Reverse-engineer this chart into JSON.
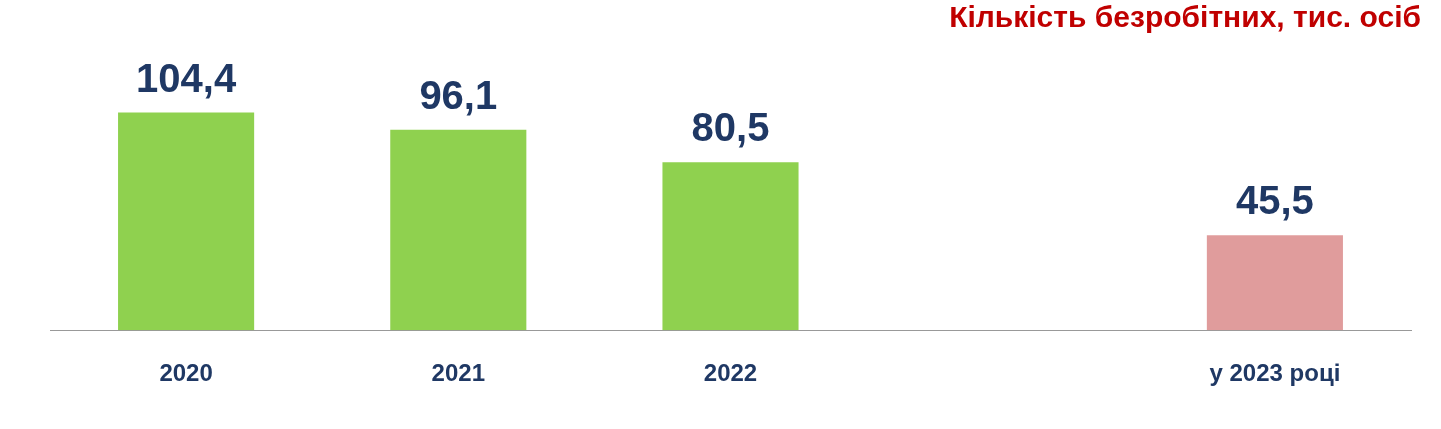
{
  "chart_data": {
    "type": "bar",
    "title": "Кількість безробітних, тис. осіб",
    "categories": [
      "2020",
      "2021",
      "2022",
      null,
      "у 2023 році"
    ],
    "values": [
      104.4,
      96.1,
      80.5,
      null,
      45.5
    ],
    "colors": [
      "#8fd14f",
      "#8fd14f",
      "#8fd14f",
      "#8fd14f",
      "#e09c9c"
    ],
    "value_labels": [
      "104,4",
      "96,1",
      "80,5",
      null,
      "45,5"
    ],
    "grid": false,
    "legend": false
  }
}
